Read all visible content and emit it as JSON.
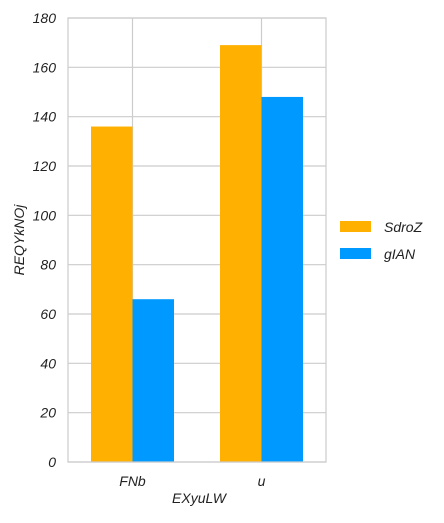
{
  "chart_data": {
    "type": "bar",
    "title": "",
    "xlabel": "EXyuLW",
    "ylabel": "REQYkNOj",
    "categories": [
      "FNb",
      "u"
    ],
    "series": [
      {
        "name": "SdroZ",
        "values": [
          136,
          169
        ],
        "color": "#ffb000"
      },
      {
        "name": "gIAN",
        "values": [
          66,
          148
        ],
        "color": "#0099ff"
      }
    ],
    "ylim": [
      0,
      180
    ],
    "yticks": [
      0,
      20,
      40,
      60,
      80,
      100,
      120,
      140,
      160,
      180
    ],
    "grid": true,
    "legend_position": "right"
  }
}
